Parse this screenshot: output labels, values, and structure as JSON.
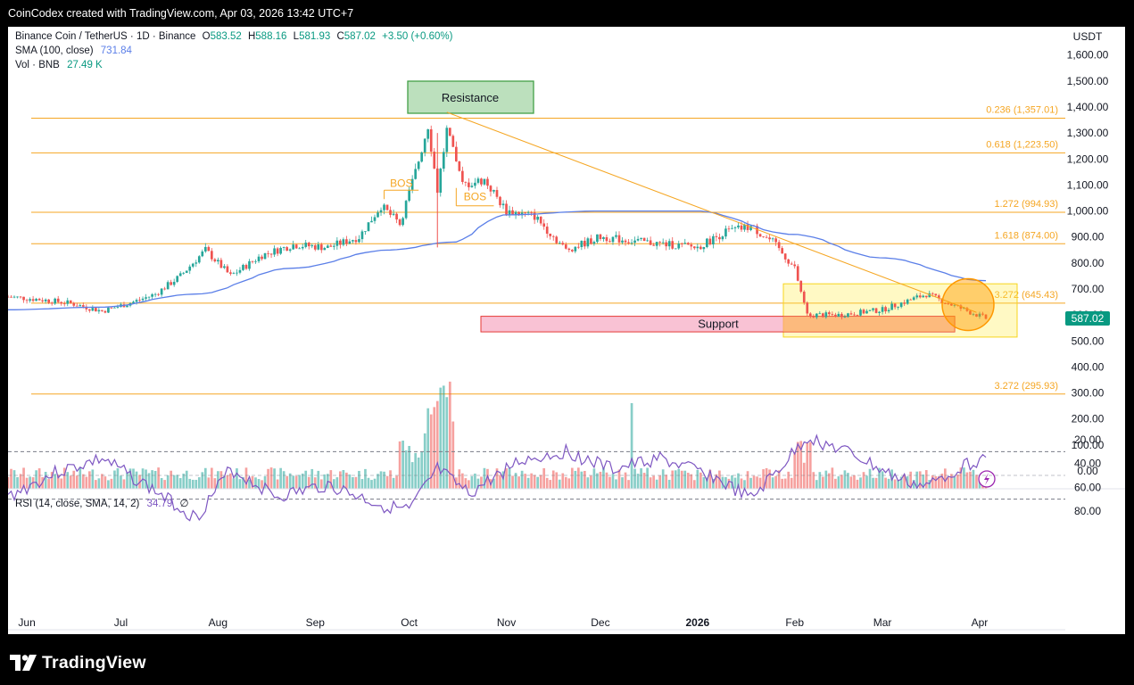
{
  "header": {
    "text": "CoinCodex created with TradingView.com, Apr 03, 2026 13:42 UTC+7"
  },
  "legend": {
    "symbol": "Binance Coin / TetherUS · 1D · Binance",
    "open_label": "O",
    "open": "583.52",
    "high_label": "H",
    "high": "588.16",
    "low_label": "L",
    "low": "581.93",
    "close_label": "C",
    "close": "587.02",
    "change": "+3.50 (+0.60%)",
    "sma_label": "SMA (100, close)",
    "sma_value": "731.84",
    "vol_label": "Vol · BNB",
    "vol_value": "27.49 K"
  },
  "price_axis": {
    "currency": "USDT",
    "ticks": [
      "1,600.00",
      "1,500.00",
      "1,400.00",
      "1,300.00",
      "1,200.00",
      "1,100.00",
      "1,000.00",
      "900.00",
      "800.00",
      "700.00",
      "600.00",
      "500.00",
      "400.00",
      "300.00",
      "200.00",
      "100.00",
      "0.00"
    ],
    "last_price": "587.02"
  },
  "fib_levels": [
    {
      "label": "0.236 (1,357.01)",
      "value": 1357.01
    },
    {
      "label": "0.618 (1,223.50)",
      "value": 1223.5
    },
    {
      "label": "1.272 (994.93)",
      "value": 994.93
    },
    {
      "label": "1.618 (874.00)",
      "value": 874.0
    },
    {
      "label": "3.272 (645.43)",
      "value": 645.43
    },
    {
      "label": "3.272 (295.93)",
      "value": 295.93
    }
  ],
  "annotations": {
    "resistance": "Resistance",
    "support": "Support",
    "bos1": "BOS",
    "bos2": "BOS"
  },
  "rsi": {
    "label": "RSI (14, close, SMA, 14, 2)",
    "value": "34.79",
    "empty": "∅",
    "ticks": [
      "80.00",
      "60.00",
      "40.00",
      "20.00"
    ]
  },
  "time_axis": [
    "Jun",
    "Jul",
    "Aug",
    "Sep",
    "Oct",
    "Nov",
    "Dec",
    "2026",
    "Feb",
    "Mar",
    "Apr"
  ],
  "footer": {
    "logo_text": "TradingView"
  },
  "colors": {
    "up": "#26a69a",
    "down": "#ef5350",
    "sma": "#5b7fe8",
    "fib": "#f5a623",
    "rsi": "#7e57c2"
  },
  "chart_data": {
    "type": "candlestick",
    "title": "Binance Coin / TetherUS · 1D · Binance",
    "ylabel": "USDT",
    "ylim": [
      0,
      1650
    ],
    "x_labels": [
      "Jun",
      "Jul",
      "Aug",
      "Sep",
      "Oct",
      "Nov",
      "Dec",
      "2026",
      "Feb",
      "Mar",
      "Apr"
    ],
    "price_path": [
      [
        "2025-05-26",
        670
      ],
      [
        "2025-06-05",
        660
      ],
      [
        "2025-06-15",
        645
      ],
      [
        "2025-06-25",
        615
      ],
      [
        "2025-07-05",
        650
      ],
      [
        "2025-07-12",
        680
      ],
      [
        "2025-07-20",
        750
      ],
      [
        "2025-07-28",
        850
      ],
      [
        "2025-08-05",
        750
      ],
      [
        "2025-08-15",
        830
      ],
      [
        "2025-08-25",
        870
      ],
      [
        "2025-09-05",
        860
      ],
      [
        "2025-09-15",
        900
      ],
      [
        "2025-09-22",
        1020
      ],
      [
        "2025-09-28",
        950
      ],
      [
        "2025-10-03",
        1150
      ],
      [
        "2025-10-07",
        1330
      ],
      [
        "2025-10-10",
        1080
      ],
      [
        "2025-10-13",
        1310
      ],
      [
        "2025-10-18",
        1100
      ],
      [
        "2025-10-25",
        1120
      ],
      [
        "2025-11-01",
        1000
      ],
      [
        "2025-11-10",
        980
      ],
      [
        "2025-11-20",
        850
      ],
      [
        "2025-12-01",
        900
      ],
      [
        "2025-12-15",
        880
      ],
      [
        "2026-01-01",
        860
      ],
      [
        "2026-01-10",
        920
      ],
      [
        "2026-01-18",
        940
      ],
      [
        "2026-01-25",
        880
      ],
      [
        "2026-02-01",
        780
      ],
      [
        "2026-02-05",
        600
      ],
      [
        "2026-02-15",
        600
      ],
      [
        "2026-03-01",
        620
      ],
      [
        "2026-03-15",
        680
      ],
      [
        "2026-03-25",
        630
      ],
      [
        "2026-04-03",
        587.02
      ]
    ],
    "sma_path": [
      [
        "2025-05-26",
        620
      ],
      [
        "2025-06-25",
        630
      ],
      [
        "2025-07-25",
        680
      ],
      [
        "2025-08-25",
        780
      ],
      [
        "2025-09-25",
        850
      ],
      [
        "2025-10-15",
        880
      ],
      [
        "2025-11-01",
        985
      ],
      [
        "2025-12-01",
        1000
      ],
      [
        "2026-01-01",
        1000
      ],
      [
        "2026-02-01",
        910
      ],
      [
        "2026-03-01",
        820
      ],
      [
        "2026-04-03",
        731.84
      ]
    ],
    "resistance_zone": [
      1370,
      1500
    ],
    "support_zone": [
      535,
      595
    ],
    "trendline": [
      [
        "2025-10-13",
        1380
      ],
      [
        "2026-03-31",
        610
      ]
    ],
    "rsi_bands": [
      30,
      70
    ],
    "rsi_path": [
      [
        "2025-05-26",
        68
      ],
      [
        "2025-06-10",
        48
      ],
      [
        "2025-06-25",
        36
      ],
      [
        "2025-07-10",
        60
      ],
      [
        "2025-07-25",
        86
      ],
      [
        "2025-08-05",
        45
      ],
      [
        "2025-08-20",
        68
      ],
      [
        "2025-09-05",
        58
      ],
      [
        "2025-09-22",
        75
      ],
      [
        "2025-10-01",
        80
      ],
      [
        "2025-10-10",
        45
      ],
      [
        "2025-10-20",
        66
      ],
      [
        "2025-11-05",
        38
      ],
      [
        "2025-11-20",
        30
      ],
      [
        "2025-12-05",
        45
      ],
      [
        "2025-12-20",
        36
      ],
      [
        "2026-01-05",
        50
      ],
      [
        "2026-01-18",
        70
      ],
      [
        "2026-01-28",
        42
      ],
      [
        "2026-02-05",
        18
      ],
      [
        "2026-02-20",
        33
      ],
      [
        "2026-03-05",
        52
      ],
      [
        "2026-03-15",
        60
      ],
      [
        "2026-03-25",
        44
      ],
      [
        "2026-04-03",
        34.79
      ]
    ]
  }
}
